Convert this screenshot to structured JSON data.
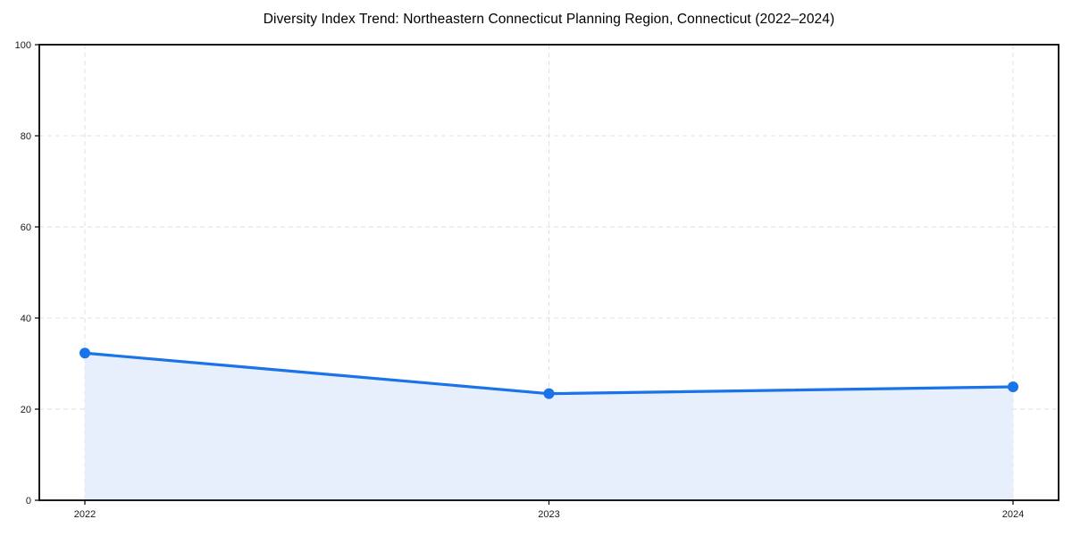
{
  "chart_data": {
    "type": "area",
    "title": "Diversity Index Trend: Northeastern Connecticut Planning Region, Connecticut (2022–2024)",
    "categories": [
      "2022",
      "2023",
      "2024"
    ],
    "values": [
      32.3,
      23.4,
      24.9
    ],
    "xlabel": "",
    "ylabel": "",
    "ylim": [
      0,
      100
    ],
    "yticks": [
      0,
      20,
      40,
      60,
      80,
      100
    ],
    "grid": true,
    "legend": false,
    "marker": "circle",
    "colors": {
      "line": "#1a73e8",
      "fill": "#e7effc",
      "grid": "#e0e0e0",
      "spine": "#000000",
      "tick_label": "#1a1a1a",
      "title": "#000000",
      "background": "#ffffff"
    }
  }
}
